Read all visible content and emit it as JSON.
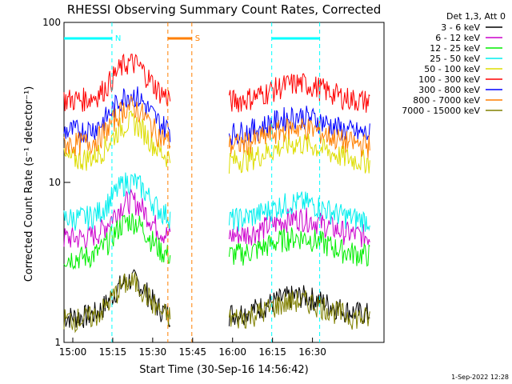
{
  "chart_data": {
    "type": "line",
    "title": "RHESSI Observing Summary Count Rates, Corrected",
    "xlabel": "Start Time (30-Sep-16 14:56:42)",
    "ylabel": "Corrected Count Rate (s⁻¹ detector⁻¹)",
    "yscale": "log",
    "ylim": [
      1,
      100
    ],
    "xlim_min": [
      0,
      155
    ],
    "x_ticks": [
      {
        "label": "15:00",
        "t": 3.3
      },
      {
        "label": "15:15",
        "t": 18.3
      },
      {
        "label": "15:30",
        "t": 33.3
      },
      {
        "label": "15:45",
        "t": 48.3
      },
      {
        "label": "16:00",
        "t": 63.3
      },
      {
        "label": "16:15",
        "t": 78.3
      },
      {
        "label": "16:30",
        "t": 93.3
      }
    ],
    "y_ticks": [
      {
        "label": "1",
        "v": 1
      },
      {
        "label": "10",
        "v": 10
      },
      {
        "label": "100",
        "v": 100
      }
    ],
    "legend_title": "Det 1,3, Att 0",
    "legend_position": "right",
    "series": [
      {
        "name": "3 - 6 keV",
        "color": "#000000",
        "segments": [
          [
            0,
            40,
            1.45
          ],
          [
            62,
            115,
            1.5
          ]
        ]
      },
      {
        "name": "6 - 12 keV",
        "color": "#cc00cc",
        "segments": [
          [
            0,
            40,
            4.5
          ],
          [
            62,
            115,
            4.6
          ]
        ]
      },
      {
        "name": "12 - 25 keV",
        "color": "#00ee00",
        "segments": [
          [
            0,
            40,
            3.4
          ],
          [
            62,
            115,
            3.5
          ]
        ]
      },
      {
        "name": "25 - 50 keV",
        "color": "#00eeee",
        "segments": [
          [
            0,
            40,
            6.0
          ],
          [
            62,
            115,
            5.8
          ]
        ]
      },
      {
        "name": "50 - 100 keV",
        "color": "#dddd00",
        "segments": [
          [
            0,
            40,
            14.0
          ],
          [
            62,
            115,
            13.5
          ]
        ]
      },
      {
        "name": "100 - 300 keV",
        "color": "#ff0000",
        "segments": [
          [
            0,
            40,
            33.0
          ],
          [
            62,
            115,
            32.0
          ]
        ]
      },
      {
        "name": "300 - 800 keV",
        "color": "#0000ff",
        "segments": [
          [
            0,
            40,
            21.0
          ],
          [
            62,
            115,
            20.0
          ]
        ]
      },
      {
        "name": "800 - 7000 keV",
        "color": "#ff7f00",
        "segments": [
          [
            0,
            40,
            17.5
          ],
          [
            62,
            115,
            17.0
          ]
        ]
      },
      {
        "name": "7000 - 15000 keV",
        "color": "#808000",
        "segments": [
          [
            0,
            40,
            1.4
          ],
          [
            62,
            115,
            1.4
          ]
        ]
      }
    ],
    "markers": [
      {
        "label": "N",
        "color": "#00ffff",
        "bars": [
          [
            0,
            18
          ],
          [
            78,
            96
          ]
        ],
        "dashed_lines": [
          18,
          78,
          96
        ]
      },
      {
        "label": "S",
        "color": "#ff7f00",
        "bars": [
          [
            39,
            48
          ]
        ],
        "dashed_lines": [
          39,
          48
        ]
      }
    ],
    "timestamp": "1-Sep-2022 12:28"
  }
}
